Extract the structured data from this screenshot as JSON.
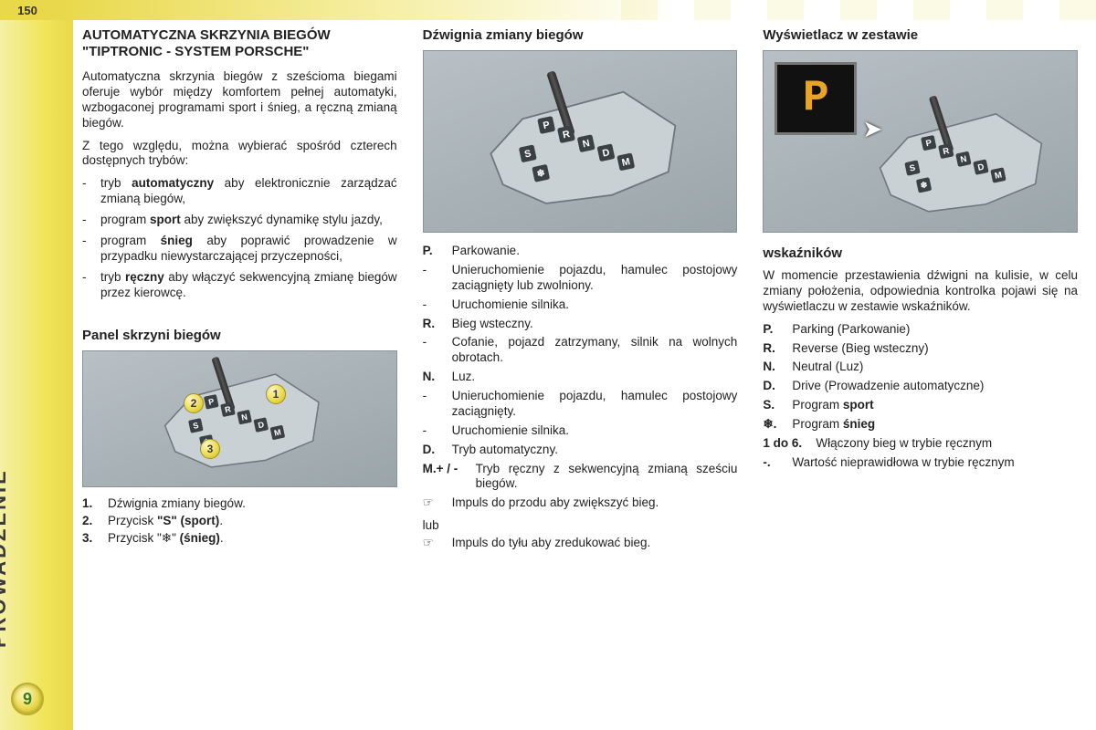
{
  "page_number": "150",
  "side_label": "PROWADZENIE",
  "chapter_number": "9",
  "colors": {
    "sidebar_gradient": [
      "#f5f0a5",
      "#e9d84a"
    ],
    "figure_bg": [
      "#b8c0c4",
      "#9aa5aa"
    ],
    "display_bg": "#111111",
    "display_letter": "#e6a528"
  },
  "col1": {
    "title": "AUTOMATYCZNA SKRZYNIA BIEGÓW \"TIPTRONIC - SYSTEM PORSCHE\"",
    "para1": "Automatyczna skrzynia biegów z sześcioma biegami oferuje wybór między komfortem pełnej automatyki, wzbogaconej programami sport i śnieg, a ręczną zmianą biegów.",
    "para2": "Z tego względu, można wybierać spośród czterech dostępnych trybów:",
    "modes": [
      {
        "mk": "-",
        "pre": "tryb ",
        "bold": "automatyczny",
        "post": " aby elektronicznie zarządzać zmianą biegów,"
      },
      {
        "mk": "-",
        "pre": "program ",
        "bold": "sport",
        "post": " aby zwiększyć dynamikę stylu jazdy,"
      },
      {
        "mk": "-",
        "pre": "program ",
        "bold": "śnieg",
        "post": " aby poprawić prowadzenie w przypadku niewystarczającej przyczepności,"
      },
      {
        "mk": "-",
        "pre": "tryb ",
        "bold": "ręczny",
        "post": " aby włączyć sekwencyjną zmianę biegów przez kierowcę."
      }
    ],
    "panel_title": "Panel skrzyni biegów",
    "panel_items": [
      {
        "n": "1.",
        "text": "Dźwignia zmiany biegów."
      },
      {
        "n": "2.",
        "pre": "Przycisk ",
        "bold": "\"S\" (sport)",
        "post": "."
      },
      {
        "n": "3.",
        "pre": "Przycisk \"❄\" ",
        "bold": "(śnieg)",
        "post": "."
      }
    ]
  },
  "col2": {
    "title": "Dźwignia zmiany biegów",
    "defs": [
      {
        "lab": "P.",
        "text": "Parkowanie."
      },
      {
        "lab": "-",
        "dash": true,
        "text": "Unieruchomienie pojazdu, hamulec postojowy zaciągnięty lub zwolniony."
      },
      {
        "lab": "-",
        "dash": true,
        "text": "Uruchomienie silnika."
      },
      {
        "lab": "R.",
        "text": "Bieg wsteczny."
      },
      {
        "lab": "-",
        "dash": true,
        "text": "Cofanie, pojazd zatrzymany, silnik na wolnych obrotach."
      },
      {
        "lab": "N.",
        "text": "Luz."
      },
      {
        "lab": "-",
        "dash": true,
        "text": "Unieruchomienie pojazdu, hamulec postojowy zaciągnięty."
      },
      {
        "lab": "-",
        "dash": true,
        "text": "Uruchomienie silnika."
      },
      {
        "lab": "D.",
        "text": "Tryb automatyczny."
      },
      {
        "lab": "M.+ / -",
        "wide": true,
        "text": "Tryb ręczny z sekwencyjną zmianą sześciu biegów."
      },
      {
        "lab": "☞",
        "dash": true,
        "text": "Impuls do przodu aby zwiększyć bieg."
      }
    ],
    "lub": "lub",
    "after_lub": {
      "lab": "☞",
      "text": "Impuls do tyłu aby zredukować bieg."
    }
  },
  "col3": {
    "title": "Wyświetlacz w zestawie",
    "display_letter": "P",
    "subtitle": "wskaźników",
    "para": "W momencie przestawienia dźwigni na kulisie, w celu zmiany położenia, odpowiednia kontrolka pojawi się na wyświetlaczu w zestawie wskaźników.",
    "defs": [
      {
        "lab": "P.",
        "text": "Parking (Parkowanie)"
      },
      {
        "lab": "R.",
        "text": "Reverse (Bieg wsteczny)"
      },
      {
        "lab": "N.",
        "text": "Neutral (Luz)"
      },
      {
        "lab": "D.",
        "text": "Drive (Prowadzenie automatyczne)"
      },
      {
        "lab": "S.",
        "pre": "Program ",
        "bold": "sport"
      },
      {
        "lab": "❄.",
        "pre": "Program ",
        "bold": "śnieg"
      },
      {
        "lab": "1 do 6.",
        "wide": true,
        "text": "Włączony bieg w trybie ręcznym"
      },
      {
        "lab": "-.",
        "text": "Wartość nieprawidłowa w trybie ręcznym"
      }
    ]
  },
  "gate_labels": [
    "P",
    "R",
    "N",
    "D",
    "M",
    "S",
    "❄"
  ]
}
